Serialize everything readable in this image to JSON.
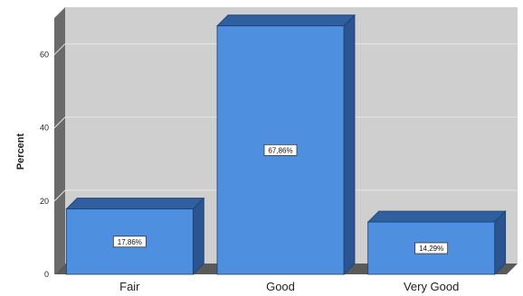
{
  "chart_data": {
    "type": "bar",
    "categories": [
      "Fair",
      "Good",
      "Very Good"
    ],
    "values": [
      17.86,
      67.86,
      14.29
    ],
    "data_labels": [
      "17,86%",
      "67,86%",
      "14,29%"
    ],
    "title": "",
    "xlabel": "",
    "ylabel": "Percent",
    "ylim": [
      0,
      70
    ],
    "yticks": [
      0,
      20,
      40,
      60
    ],
    "ytick_labels": [
      "0",
      "20",
      "40",
      "60"
    ],
    "grid": true,
    "style": "3d",
    "colors": {
      "bar_front": "#4f8fe0",
      "bar_top": "#2f5f9f",
      "bar_side": "#2a5590",
      "bar_outline": "#1d3f73",
      "plot_background": "#c9c9c9",
      "plot_back_wall": "#cfcfcf",
      "floor": "#5a5a5a",
      "left_wall": "#6a6a6a",
      "gridline": "#e6e6e6"
    }
  }
}
